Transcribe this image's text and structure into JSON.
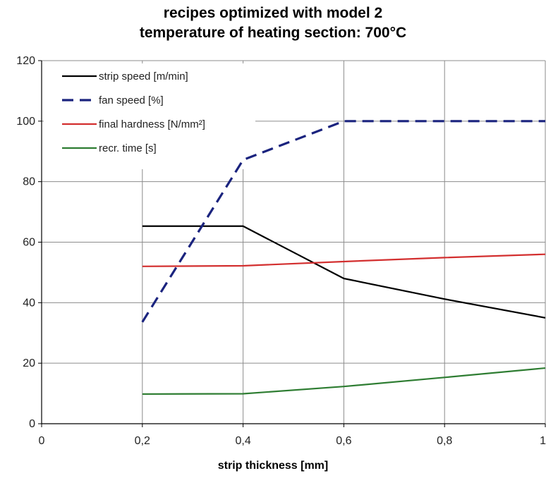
{
  "chart_data": {
    "type": "line",
    "title": "recipes optimized with model 2",
    "subtitle": "temperature of heating section: 700°C",
    "xlabel": "strip thickness [mm]",
    "ylabel": "",
    "xlim": [
      0,
      1
    ],
    "ylim": [
      0,
      120
    ],
    "x_ticks": [
      0,
      0.2,
      0.4,
      0.6,
      0.8,
      1
    ],
    "x_tick_labels": [
      "0",
      "0,2",
      "0,4",
      "0,6",
      "0,8",
      "1"
    ],
    "y_ticks": [
      0,
      20,
      40,
      60,
      80,
      100,
      120
    ],
    "y_tick_labels": [
      "0",
      "20",
      "40",
      "60",
      "80",
      "100",
      "120"
    ],
    "grid": true,
    "legend_position": "top-left",
    "series": [
      {
        "name": "strip speed [m/min]",
        "color": "#000000",
        "dash": "solid",
        "x": [
          0.2,
          0.4,
          0.6,
          0.8,
          1.0
        ],
        "y": [
          65.3,
          65.3,
          48,
          41.2,
          35
        ]
      },
      {
        "name": "fan speed [%]",
        "color": "#1a237e",
        "dash": "dashed",
        "x": [
          0.2,
          0.4,
          0.6,
          0.8,
          1.0
        ],
        "y": [
          33.6,
          87.2,
          100,
          100,
          100
        ]
      },
      {
        "name": "final hardness [N/mm²]",
        "color": "#d32f2f",
        "dash": "solid",
        "x": [
          0.2,
          0.4,
          0.6,
          0.8,
          1.0
        ],
        "y": [
          52,
          52.2,
          53.6,
          54.9,
          56
        ]
      },
      {
        "name": "recr. time [s]",
        "color": "#2e7d32",
        "dash": "solid",
        "x": [
          0.2,
          0.4,
          0.6,
          0.8,
          1.0
        ],
        "y": [
          9.8,
          9.9,
          12.3,
          15.3,
          18.4
        ]
      }
    ]
  }
}
